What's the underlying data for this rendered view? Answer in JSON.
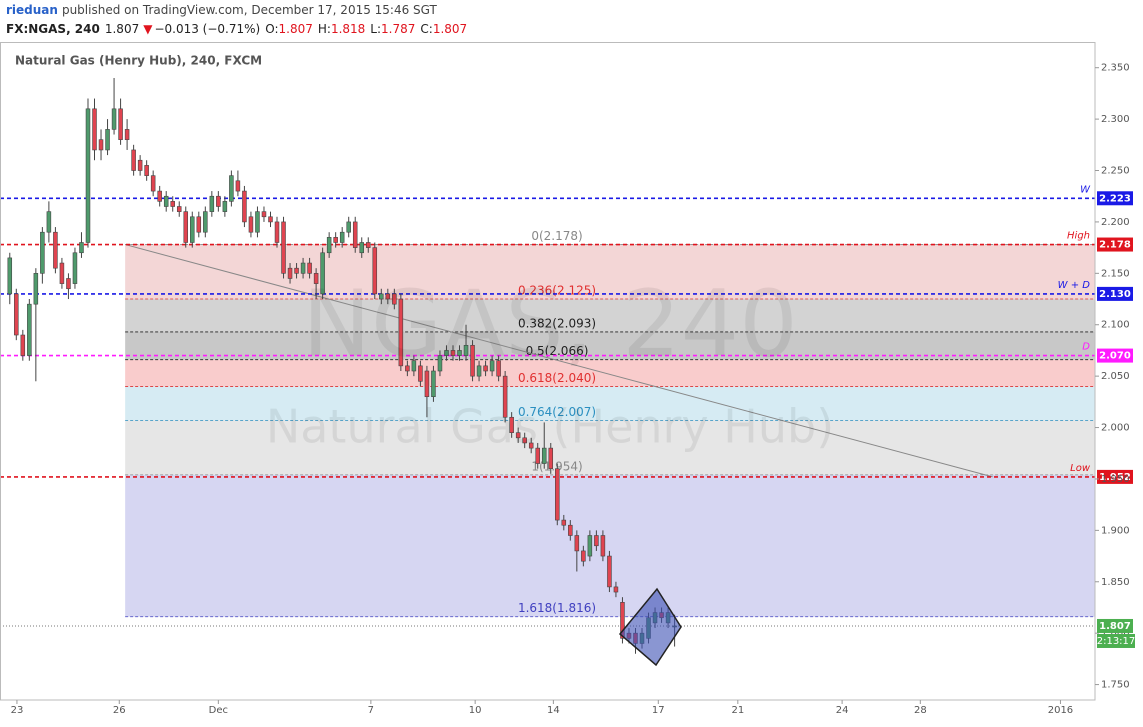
{
  "header": {
    "author": "rieduan",
    "published": "published on TradingView.com, December 17, 2015 15:46 SGT",
    "symbol": "FX:NGAS, 240",
    "last": "1.807",
    "arrow": "▼",
    "change": "−0.013 (−0.71%)",
    "ohlc": [
      {
        "label": "O:",
        "value": "1.807"
      },
      {
        "label": "H:",
        "value": "1.818"
      },
      {
        "label": "L:",
        "value": "1.787"
      },
      {
        "label": "C:",
        "value": "1.807"
      }
    ]
  },
  "chart_data": {
    "type": "candlestick",
    "title": "Natural Gas (Henry Hub), 240, FXCM",
    "watermark": "NGAS, 240",
    "watermark_sub": "Natural Gas (Henry Hub)",
    "up_color": "#4f9a6c",
    "down_color": "#e04450",
    "xlim": [
      -1.5,
      166.5
    ],
    "ylim": [
      1.735,
      2.375
    ],
    "xticks": [
      {
        "value": 1.1,
        "label": "23"
      },
      {
        "value": 16.8,
        "label": "26"
      },
      {
        "value": 32,
        "label": "Dec"
      },
      {
        "value": 55.4,
        "label": "7"
      },
      {
        "value": 71.4,
        "label": "10"
      },
      {
        "value": 83.4,
        "label": "14"
      },
      {
        "value": 99.5,
        "label": "17"
      },
      {
        "value": 111.7,
        "label": "21"
      },
      {
        "value": 127.7,
        "label": "24"
      },
      {
        "value": 139.7,
        "label": "28"
      },
      {
        "value": 161.2,
        "label": "2016"
      }
    ],
    "yticks": [
      {
        "value": 1.75,
        "label": "1.750"
      },
      {
        "value": 1.8,
        "label": "1.800"
      },
      {
        "value": 1.85,
        "label": "1.850"
      },
      {
        "value": 1.9,
        "label": "1.900"
      },
      {
        "value": 1.95,
        "label": "1.950"
      },
      {
        "value": 2,
        "label": "2.000"
      },
      {
        "value": 2.05,
        "label": "2.050"
      },
      {
        "value": 2.1,
        "label": "2.100"
      },
      {
        "value": 2.15,
        "label": "2.150"
      },
      {
        "value": 2.2,
        "label": "2.200"
      },
      {
        "value": 2.25,
        "label": "2.250"
      },
      {
        "value": 2.3,
        "label": "2.300"
      },
      {
        "value": 2.35,
        "label": "2.350"
      }
    ],
    "x": [
      0,
      1,
      2,
      3,
      4,
      5,
      6,
      7,
      8,
      9,
      10,
      11,
      12,
      13,
      14,
      15,
      16,
      17,
      18,
      19,
      20,
      21,
      22,
      23,
      24,
      25,
      26,
      27,
      28,
      29,
      30,
      31,
      32,
      33,
      34,
      35,
      36,
      37,
      38,
      39,
      40,
      41,
      42,
      43,
      44,
      45,
      46,
      47,
      48,
      49,
      50,
      51,
      52,
      53,
      54,
      55,
      56,
      57,
      58,
      59,
      60,
      61,
      62,
      63,
      64,
      65,
      66,
      67,
      68,
      69,
      70,
      71,
      72,
      73,
      74,
      75,
      76,
      77,
      78,
      79,
      80,
      81,
      82,
      83,
      84,
      85,
      86,
      87,
      88,
      89,
      90,
      91,
      92,
      93,
      94,
      95,
      96,
      97,
      98,
      99,
      100,
      101,
      102
    ],
    "ohlc": [
      [
        2.13,
        2.17,
        2.12,
        2.165
      ],
      [
        2.13,
        2.135,
        2.085,
        2.09
      ],
      [
        2.09,
        2.095,
        2.065,
        2.07
      ],
      [
        2.07,
        2.125,
        2.065,
        2.12
      ],
      [
        2.12,
        2.155,
        2.045,
        2.15
      ],
      [
        2.15,
        2.195,
        2.14,
        2.19
      ],
      [
        2.19,
        2.22,
        2.18,
        2.21
      ],
      [
        2.19,
        2.195,
        2.15,
        2.155
      ],
      [
        2.16,
        2.165,
        2.135,
        2.14
      ],
      [
        2.145,
        2.15,
        2.125,
        2.135
      ],
      [
        2.14,
        2.175,
        2.135,
        2.17
      ],
      [
        2.17,
        2.19,
        2.165,
        2.18
      ],
      [
        2.18,
        2.32,
        2.175,
        2.31
      ],
      [
        2.31,
        2.32,
        2.26,
        2.27
      ],
      [
        2.28,
        2.29,
        2.26,
        2.27
      ],
      [
        2.27,
        2.3,
        2.265,
        2.29
      ],
      [
        2.29,
        2.34,
        2.285,
        2.31
      ],
      [
        2.31,
        2.32,
        2.275,
        2.28
      ],
      [
        2.29,
        2.3,
        2.27,
        2.28
      ],
      [
        2.27,
        2.275,
        2.245,
        2.25
      ],
      [
        2.26,
        2.265,
        2.245,
        2.25
      ],
      [
        2.255,
        2.26,
        2.24,
        2.245
      ],
      [
        2.245,
        2.25,
        2.225,
        2.23
      ],
      [
        2.23,
        2.235,
        2.215,
        2.22
      ],
      [
        2.215,
        2.23,
        2.21,
        2.225
      ],
      [
        2.22,
        2.225,
        2.21,
        2.215
      ],
      [
        2.215,
        2.22,
        2.205,
        2.21
      ],
      [
        2.21,
        2.215,
        2.175,
        2.18
      ],
      [
        2.18,
        2.21,
        2.175,
        2.205
      ],
      [
        2.205,
        2.21,
        2.185,
        2.19
      ],
      [
        2.19,
        2.215,
        2.185,
        2.21
      ],
      [
        2.21,
        2.23,
        2.205,
        2.225
      ],
      [
        2.225,
        2.23,
        2.21,
        2.215
      ],
      [
        2.21,
        2.225,
        2.205,
        2.22
      ],
      [
        2.22,
        2.25,
        2.215,
        2.245
      ],
      [
        2.24,
        2.25,
        2.225,
        2.23
      ],
      [
        2.23,
        2.235,
        2.195,
        2.2
      ],
      [
        2.205,
        2.21,
        2.185,
        2.19
      ],
      [
        2.19,
        2.215,
        2.185,
        2.21
      ],
      [
        2.21,
        2.215,
        2.2,
        2.205
      ],
      [
        2.205,
        2.21,
        2.195,
        2.2
      ],
      [
        2.2,
        2.205,
        2.175,
        2.18
      ],
      [
        2.2,
        2.205,
        2.145,
        2.15
      ],
      [
        2.155,
        2.16,
        2.14,
        2.145
      ],
      [
        2.155,
        2.16,
        2.145,
        2.15
      ],
      [
        2.15,
        2.165,
        2.145,
        2.16
      ],
      [
        2.16,
        2.165,
        2.145,
        2.15
      ],
      [
        2.15,
        2.155,
        2.125,
        2.14
      ],
      [
        2.13,
        2.175,
        2.125,
        2.17
      ],
      [
        2.17,
        2.19,
        2.165,
        2.185
      ],
      [
        2.185,
        2.19,
        2.175,
        2.18
      ],
      [
        2.18,
        2.195,
        2.175,
        2.19
      ],
      [
        2.19,
        2.205,
        2.185,
        2.2
      ],
      [
        2.2,
        2.205,
        2.17,
        2.175
      ],
      [
        2.17,
        2.185,
        2.165,
        2.18
      ],
      [
        2.18,
        2.185,
        2.17,
        2.175
      ],
      [
        2.175,
        2.18,
        2.125,
        2.13
      ],
      [
        2.125,
        2.135,
        2.12,
        2.13
      ],
      [
        2.13,
        2.135,
        2.12,
        2.125
      ],
      [
        2.13,
        2.135,
        2.115,
        2.12
      ],
      [
        2.125,
        2.13,
        2.055,
        2.06
      ],
      [
        2.06,
        2.065,
        2.05,
        2.055
      ],
      [
        2.055,
        2.07,
        2.05,
        2.065
      ],
      [
        2.06,
        2.065,
        2.04,
        2.045
      ],
      [
        2.055,
        2.06,
        2.01,
        2.03
      ],
      [
        2.03,
        2.06,
        2.025,
        2.055
      ],
      [
        2.055,
        2.075,
        2.05,
        2.07
      ],
      [
        2.07,
        2.08,
        2.065,
        2.075
      ],
      [
        2.075,
        2.08,
        2.065,
        2.07
      ],
      [
        2.07,
        2.08,
        2.065,
        2.075
      ],
      [
        2.07,
        2.1,
        2.065,
        2.08
      ],
      [
        2.08,
        2.085,
        2.045,
        2.05
      ],
      [
        2.05,
        2.065,
        2.045,
        2.06
      ],
      [
        2.06,
        2.065,
        2.05,
        2.055
      ],
      [
        2.055,
        2.07,
        2.05,
        2.065
      ],
      [
        2.065,
        2.07,
        2.045,
        2.05
      ],
      [
        2.05,
        2.055,
        2.005,
        2.01
      ],
      [
        2.01,
        2.015,
        1.99,
        1.995
      ],
      [
        1.995,
        2,
        1.985,
        1.99
      ],
      [
        1.99,
        1.995,
        1.98,
        1.985
      ],
      [
        1.985,
        1.99,
        1.975,
        1.98
      ],
      [
        1.98,
        1.985,
        1.96,
        1.965
      ],
      [
        1.965,
        2.005,
        1.96,
        1.98
      ],
      [
        1.98,
        1.985,
        1.955,
        1.96
      ],
      [
        1.96,
        1.965,
        1.905,
        1.91
      ],
      [
        1.91,
        1.915,
        1.9,
        1.905
      ],
      [
        1.905,
        1.91,
        1.89,
        1.895
      ],
      [
        1.895,
        1.9,
        1.86,
        1.88
      ],
      [
        1.88,
        1.885,
        1.865,
        1.87
      ],
      [
        1.875,
        1.9,
        1.87,
        1.895
      ],
      [
        1.895,
        1.9,
        1.88,
        1.885
      ],
      [
        1.895,
        1.9,
        1.87,
        1.875
      ],
      [
        1.875,
        1.88,
        1.84,
        1.845
      ],
      [
        1.845,
        1.85,
        1.835,
        1.84
      ],
      [
        1.83,
        1.835,
        1.79,
        1.795
      ],
      [
        1.8,
        1.805,
        1.79,
        1.795
      ],
      [
        1.8,
        1.805,
        1.78,
        1.79
      ],
      [
        1.79,
        1.805,
        1.785,
        1.8
      ],
      [
        1.795,
        1.82,
        1.79,
        1.815
      ],
      [
        1.81,
        1.825,
        1.805,
        1.82
      ],
      [
        1.82,
        1.825,
        1.81,
        1.815
      ],
      [
        1.81,
        1.825,
        1.805,
        1.82
      ],
      [
        1.807,
        1.818,
        1.787,
        1.807
      ]
    ],
    "fib": {
      "x_start": 17.7,
      "levels": [
        {
          "label": "0(2.178)",
          "value": 2.178,
          "color": "#888888"
        },
        {
          "label": "0.236(2.125)",
          "value": 2.125,
          "color": "#e03030"
        },
        {
          "label": "0.382(2.093)",
          "value": 2.093,
          "color": "#222222"
        },
        {
          "label": "0.5(2.066)",
          "value": 2.066,
          "color": "#222222"
        },
        {
          "label": "0.618(2.040)",
          "value": 2.04,
          "color": "#e03030"
        },
        {
          "label": "0.764(2.007)",
          "value": 2.007,
          "color": "#2a8fc0"
        },
        {
          "label": "1(1.954)",
          "value": 1.954,
          "color": "#888888"
        },
        {
          "label": "1.618(1.816)",
          "value": 1.816,
          "color": "#4040c0"
        }
      ],
      "zone_colors": [
        "#f3d6d6",
        "#d3d3d3",
        "#c8c8c8",
        "#f9cccc",
        "#d6ebf3",
        "#e6e6e6",
        "#d6d6f2"
      ]
    },
    "hlines": [
      {
        "label": "W",
        "value": 2.223,
        "price_label": "2.223",
        "color": "#1a1ae6"
      },
      {
        "label": "High",
        "value": 2.178,
        "price_label": "2.178",
        "color": "#e0141e"
      },
      {
        "label": "W + D",
        "value": 2.13,
        "price_label": "2.130",
        "color": "#1a1ae6"
      },
      {
        "label": "D",
        "value": 2.07,
        "price_label": "2.070",
        "color": "#ff1aff"
      },
      {
        "label": "Low",
        "value": 1.952,
        "price_label": "1.952",
        "color": "#e0141e"
      }
    ],
    "trendline": {
      "x": [
        17.7,
        150.8
      ],
      "y": [
        2.178,
        1.952
      ]
    },
    "last": {
      "value": 1.807,
      "label": "1.807",
      "timer": "2:13:17",
      "color": "#4caf50"
    }
  }
}
